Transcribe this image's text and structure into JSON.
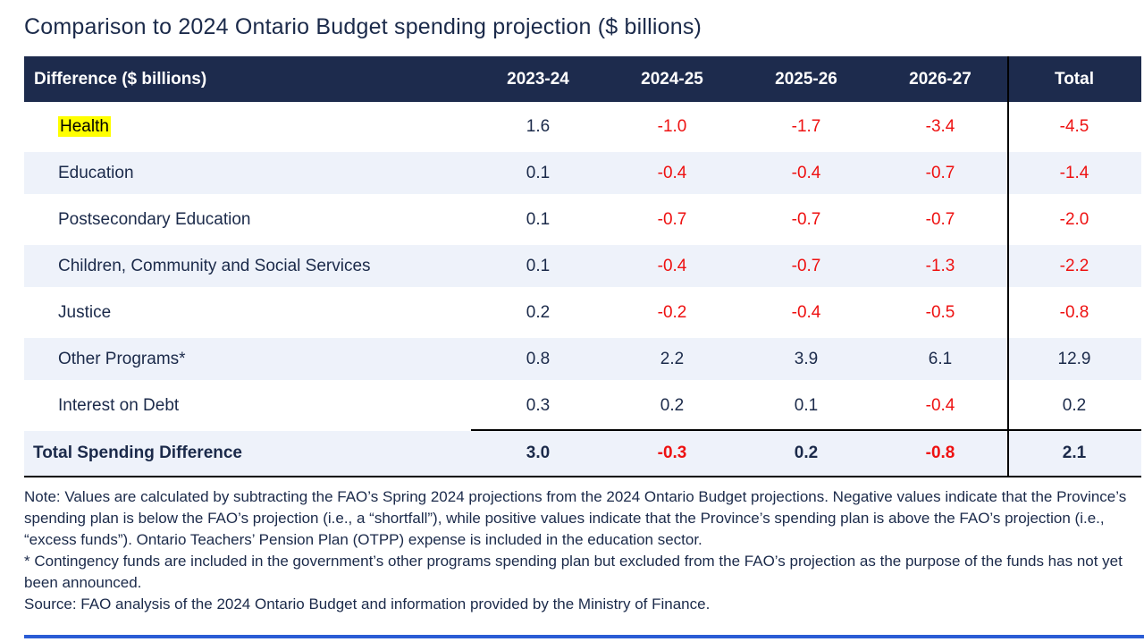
{
  "title": "Comparison to 2024 Ontario Budget spending projection ($ billions)",
  "table": {
    "header": {
      "label": "Difference ($ billions)",
      "columns": [
        "2023-24",
        "2024-25",
        "2025-26",
        "2026-27",
        "Total"
      ]
    },
    "rows": [
      {
        "label": "Health",
        "highlight": true,
        "values": [
          "1.6",
          "-1.0",
          "-1.7",
          "-3.4",
          "-4.5"
        ]
      },
      {
        "label": "Education",
        "highlight": false,
        "values": [
          "0.1",
          "-0.4",
          "-0.4",
          "-0.7",
          "-1.4"
        ]
      },
      {
        "label": "Postsecondary Education",
        "highlight": false,
        "values": [
          "0.1",
          "-0.7",
          "-0.7",
          "-0.7",
          "-2.0"
        ]
      },
      {
        "label": "Children, Community and Social Services",
        "highlight": false,
        "values": [
          "0.1",
          "-0.4",
          "-0.7",
          "-1.3",
          "-2.2"
        ]
      },
      {
        "label": "Justice",
        "highlight": false,
        "values": [
          "0.2",
          "-0.2",
          "-0.4",
          "-0.5",
          "-0.8"
        ]
      },
      {
        "label": "Other Programs*",
        "highlight": false,
        "values": [
          "0.8",
          "2.2",
          "3.9",
          "6.1",
          "12.9"
        ]
      },
      {
        "label": "Interest on Debt",
        "highlight": false,
        "values": [
          "0.3",
          "0.2",
          "0.1",
          "-0.4",
          "0.2"
        ]
      }
    ],
    "total_row": {
      "label": "Total Spending Difference",
      "values": [
        "3.0",
        "-0.3",
        "0.2",
        "-0.8",
        "2.1"
      ]
    }
  },
  "notes": {
    "note": "Note: Values are calculated by subtracting the FAO’s Spring 2024 projections from the 2024 Ontario Budget projections. Negative values indicate that the Province’s spending plan is below the FAO’s projection (i.e., a “shortfall”), while positive values indicate that the Province’s spending plan is above the FAO’s projection (i.e., “excess funds”). Ontario Teachers’ Pension Plan (OTPP) expense is included in the education sector.",
    "contingency": "* Contingency funds are included in the government’s other programs spending plan but excluded from the FAO’s projection as the purpose of the funds has not yet been announced.",
    "source": "Source: FAO analysis of the 2024 Ontario Budget and information provided by the Ministry of Finance."
  },
  "colors": {
    "header_bg": "#1d2b4d",
    "stripe_bg": "#eef2fa",
    "text_navy": "#1b2a4a",
    "negative_red": "#ee1111",
    "highlight_yellow": "#ffff00",
    "rule_blue": "#2a5cd5",
    "divider_black": "#000000"
  }
}
